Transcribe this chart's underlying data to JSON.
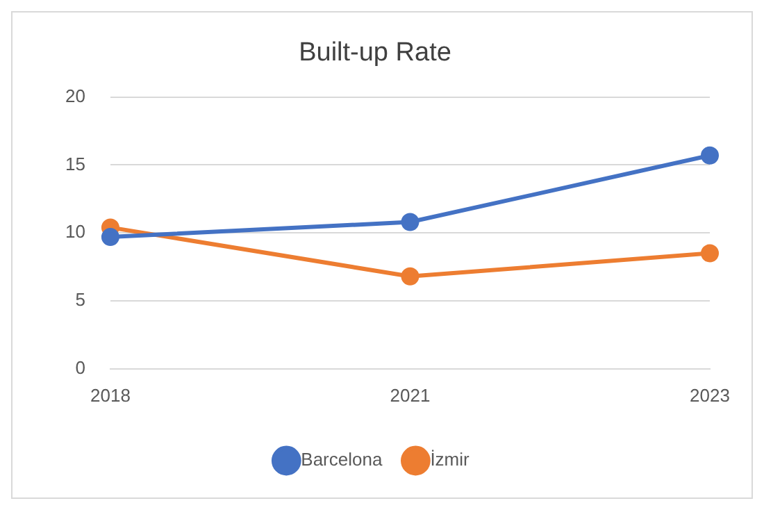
{
  "chart_data": {
    "type": "line",
    "title": "Built-up Rate",
    "categories": [
      "2018",
      "2021",
      "2023"
    ],
    "series": [
      {
        "name": "Barcelona",
        "color": "#4472c4",
        "values": [
          9.7,
          10.8,
          15.7
        ]
      },
      {
        "name": "İzmir",
        "color": "#ed7d31",
        "values": [
          10.4,
          6.8,
          8.5
        ]
      }
    ],
    "ylim": [
      0,
      20
    ],
    "yticks": [
      0,
      5,
      10,
      15,
      20
    ],
    "grid": "y",
    "legend": "bottom",
    "marker": "circle",
    "line_style": "solid"
  }
}
